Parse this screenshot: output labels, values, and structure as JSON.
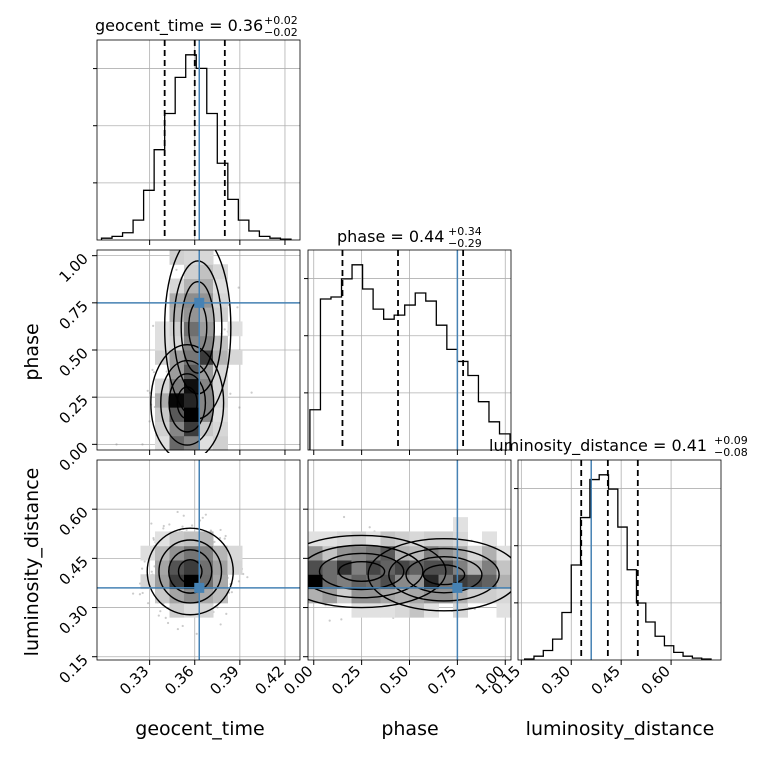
{
  "chart_data": {
    "type": "corner",
    "parameters": [
      {
        "name": "geocent_time",
        "median": 0.36,
        "plus": "0.02",
        "minus": "0.02",
        "q16": 0.34,
        "q84": 0.38,
        "truth": 0.363,
        "lim": [
          0.295,
          0.43
        ],
        "ticks": [
          0.33,
          0.36,
          0.39,
          0.42
        ],
        "tick_labels": [
          "0.33",
          "0.36",
          "0.39",
          "0.42"
        ]
      },
      {
        "name": "phase",
        "median": 0.44,
        "plus": "0.34",
        "minus": "0.29",
        "q16": 0.15,
        "q84": 0.78,
        "truth": 0.75,
        "lim": [
          -0.03,
          1.03
        ],
        "ticks": [
          0.0,
          0.25,
          0.5,
          0.75,
          1.0
        ],
        "tick_labels": [
          "0.00",
          "0.25",
          "0.50",
          "0.75",
          "1.00"
        ]
      },
      {
        "name": "luminosity_distance",
        "median": 0.41,
        "plus": "0.09",
        "minus": "0.08",
        "q16": 0.33,
        "q84": 0.5,
        "truth": 0.36,
        "lim": [
          0.14,
          0.75
        ],
        "ticks": [
          0.15,
          0.3,
          0.45,
          0.6
        ],
        "tick_labels": [
          "0.15",
          "0.30",
          "0.45",
          "0.60"
        ]
      }
    ],
    "titles": [
      {
        "label": "geocent_time = 0.36",
        "sup": "+0.02",
        "sub": "−0.02"
      },
      {
        "label": "phase = 0.44",
        "sup": "+0.34",
        "sub": "−0.29"
      },
      {
        "label": "luminosity_distance = 0.41",
        "sup": "+0.09",
        "sub": "−0.08"
      }
    ],
    "histograms": [
      {
        "param": "geocent_time",
        "bins": [
          0.298,
          0.305,
          0.312,
          0.319,
          0.326,
          0.333,
          0.34,
          0.347,
          0.354,
          0.361,
          0.368,
          0.375,
          0.382,
          0.389,
          0.396,
          0.403,
          0.41,
          0.417,
          0.424
        ],
        "counts": [
          2,
          4,
          8,
          22,
          55,
          100,
          140,
          180,
          205,
          190,
          140,
          85,
          45,
          22,
          10,
          4,
          2,
          1
        ]
      },
      {
        "param": "phase",
        "bins": [
          -0.02,
          0.035,
          0.09,
          0.145,
          0.2,
          0.255,
          0.31,
          0.365,
          0.42,
          0.475,
          0.53,
          0.585,
          0.64,
          0.695,
          0.75,
          0.805,
          0.86,
          0.915,
          0.97,
          1.025
        ],
        "counts": [
          20,
          75,
          76,
          85,
          92,
          80,
          70,
          65,
          67,
          72,
          78,
          74,
          62,
          50,
          44,
          37,
          24,
          14,
          8
        ]
      },
      {
        "param": "luminosity_distance",
        "bins": [
          0.16,
          0.188,
          0.216,
          0.244,
          0.272,
          0.3,
          0.328,
          0.356,
          0.384,
          0.412,
          0.44,
          0.468,
          0.496,
          0.524,
          0.552,
          0.58,
          0.608,
          0.636,
          0.664,
          0.692,
          0.72
        ],
        "counts": [
          1,
          4,
          10,
          22,
          50,
          100,
          150,
          190,
          195,
          180,
          140,
          95,
          60,
          40,
          25,
          15,
          8,
          4,
          2,
          1
        ]
      }
    ],
    "x_axis_labels": [
      "geocent_time",
      "phase",
      "luminosity_distance"
    ],
    "y_axis_labels": [
      "phase",
      "luminosity_distance"
    ],
    "truth_color": "#4682b4",
    "contour_levels": 4,
    "grid": true
  }
}
